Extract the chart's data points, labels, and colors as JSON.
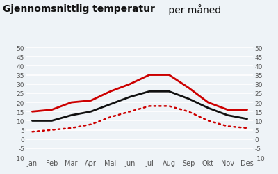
{
  "title_bold": "Gjennomsnittlig temperatur",
  "title_regular": " per måned",
  "months": [
    "Jan",
    "Feb",
    "Mar",
    "Apr",
    "Mai",
    "Jun",
    "Jul",
    "Aug",
    "Sep",
    "Okt",
    "Nov",
    "Des"
  ],
  "red_solid": [
    15,
    16,
    20,
    21,
    26,
    30,
    35,
    35,
    28,
    20,
    16,
    16
  ],
  "black_solid": [
    10,
    10,
    13,
    15,
    19,
    23,
    26,
    26,
    22,
    17,
    13,
    11
  ],
  "red_dotted": [
    4,
    5,
    6,
    8,
    12,
    15,
    18,
    18,
    15,
    10,
    7,
    6
  ],
  "ylim": [
    -10,
    50
  ],
  "yticks": [
    -10,
    -5,
    0,
    5,
    10,
    15,
    20,
    25,
    30,
    35,
    40,
    45,
    50
  ],
  "bg_color": "#eef3f7",
  "line_color_red": "#cc0000",
  "line_color_black": "#111111",
  "title_color": "#111111",
  "header_bar_color": "#6ecae8",
  "grid_color": "#ffffff",
  "fig_bg": "#eef3f7"
}
